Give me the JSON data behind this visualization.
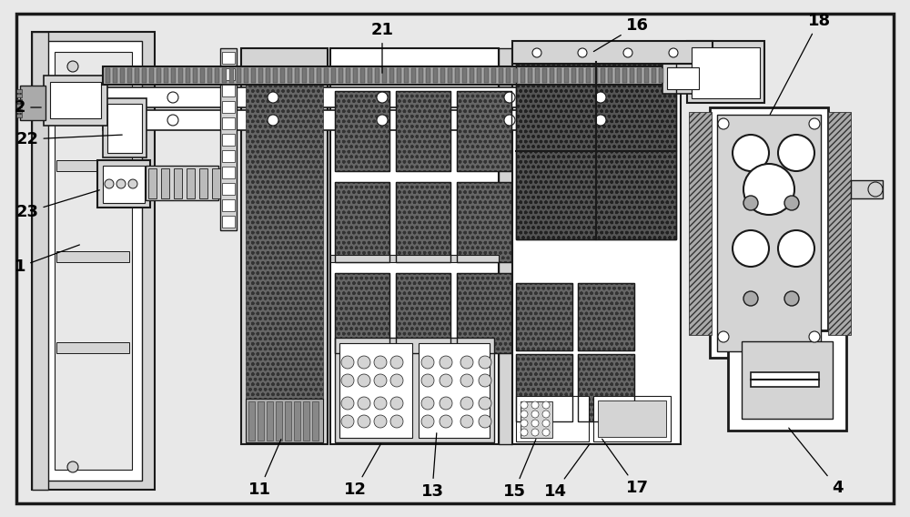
{
  "bg_color": "#e8e8e8",
  "line_color": "#1a1a1a",
  "white": "#ffffff",
  "light_gray": "#d4d4d4",
  "medium_gray": "#aaaaaa",
  "dark_fill": "#555555",
  "figsize": [
    10.0,
    5.68
  ],
  "dpi": 100
}
